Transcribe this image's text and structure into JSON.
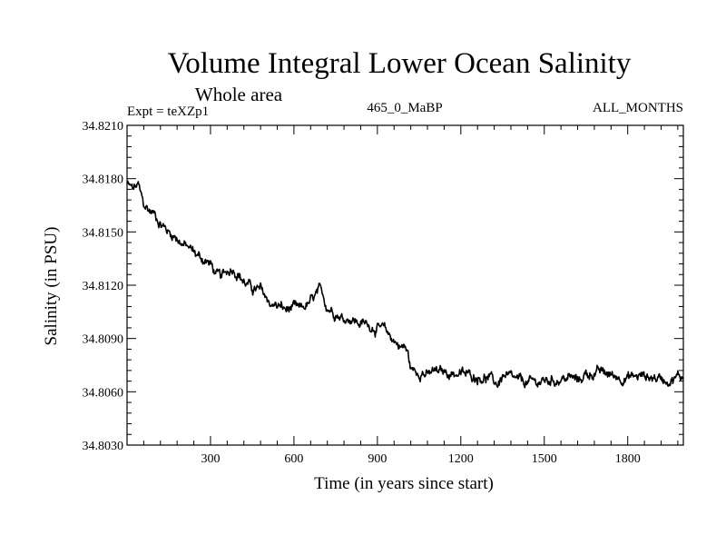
{
  "chart_data": {
    "type": "line",
    "title": "Volume Integral Lower Ocean Salinity",
    "subtitle": "Whole area",
    "experiment_label": "Expt = teXZp1",
    "run_label": "465_0_MaBP",
    "months_label": "ALL_MONTHS",
    "xlabel": "Time (in years since start)",
    "ylabel": "Salinity (in PSU)",
    "xlim": [
      0,
      2000
    ],
    "ylim": [
      34.803,
      34.821
    ],
    "x_ticks": [
      300,
      600,
      900,
      1200,
      1500,
      1800
    ],
    "x_tick_labels": [
      "300",
      "600",
      "900",
      "1200",
      "1500",
      "1800"
    ],
    "y_ticks": [
      34.803,
      34.806,
      34.809,
      34.812,
      34.815,
      34.818,
      34.821
    ],
    "y_tick_labels": [
      "34.8030",
      "34.8060",
      "34.8090",
      "34.8120",
      "34.8150",
      "34.8180",
      "34.8210"
    ],
    "grid": false,
    "series": [
      {
        "name": "Salinity",
        "color": "#000000",
        "x": [
          0,
          20,
          40,
          60,
          80,
          100,
          120,
          150,
          180,
          200,
          230,
          260,
          300,
          320,
          340,
          360,
          380,
          400,
          420,
          450,
          480,
          500,
          520,
          550,
          570,
          600,
          620,
          650,
          670,
          690,
          700,
          720,
          750,
          780,
          800,
          830,
          860,
          880,
          900,
          930,
          960,
          980,
          1000,
          1010,
          1020,
          1040,
          1060,
          1080,
          1100,
          1150,
          1200,
          1250,
          1300,
          1330,
          1350,
          1400,
          1450,
          1500,
          1550,
          1600,
          1620,
          1650,
          1700,
          1750,
          1800,
          1850,
          1900,
          1950,
          2000
        ],
        "values": [
          34.8177,
          34.8174,
          34.8176,
          34.8165,
          34.8162,
          34.816,
          34.8155,
          34.815,
          34.8147,
          34.8143,
          34.814,
          34.8136,
          34.8132,
          34.8126,
          34.8124,
          34.8128,
          34.813,
          34.8127,
          34.8122,
          34.8118,
          34.8117,
          34.8113,
          34.8109,
          34.8108,
          34.8106,
          34.8107,
          34.8106,
          34.8109,
          34.8112,
          34.8116,
          34.8115,
          34.8108,
          34.8105,
          34.8101,
          34.8102,
          34.8099,
          34.8098,
          34.8097,
          34.8096,
          34.8094,
          34.8089,
          34.8086,
          34.8085,
          34.8081,
          34.8073,
          34.8071,
          34.8072,
          34.8069,
          34.8071,
          34.8071,
          34.807,
          34.8069,
          34.8068,
          34.8064,
          34.8069,
          34.8066,
          34.8065,
          34.8066,
          34.8067,
          34.8068,
          34.8066,
          34.807,
          34.8071,
          34.8069,
          34.8068,
          34.8069,
          34.8068,
          34.8067,
          34.8069
        ]
      }
    ]
  }
}
